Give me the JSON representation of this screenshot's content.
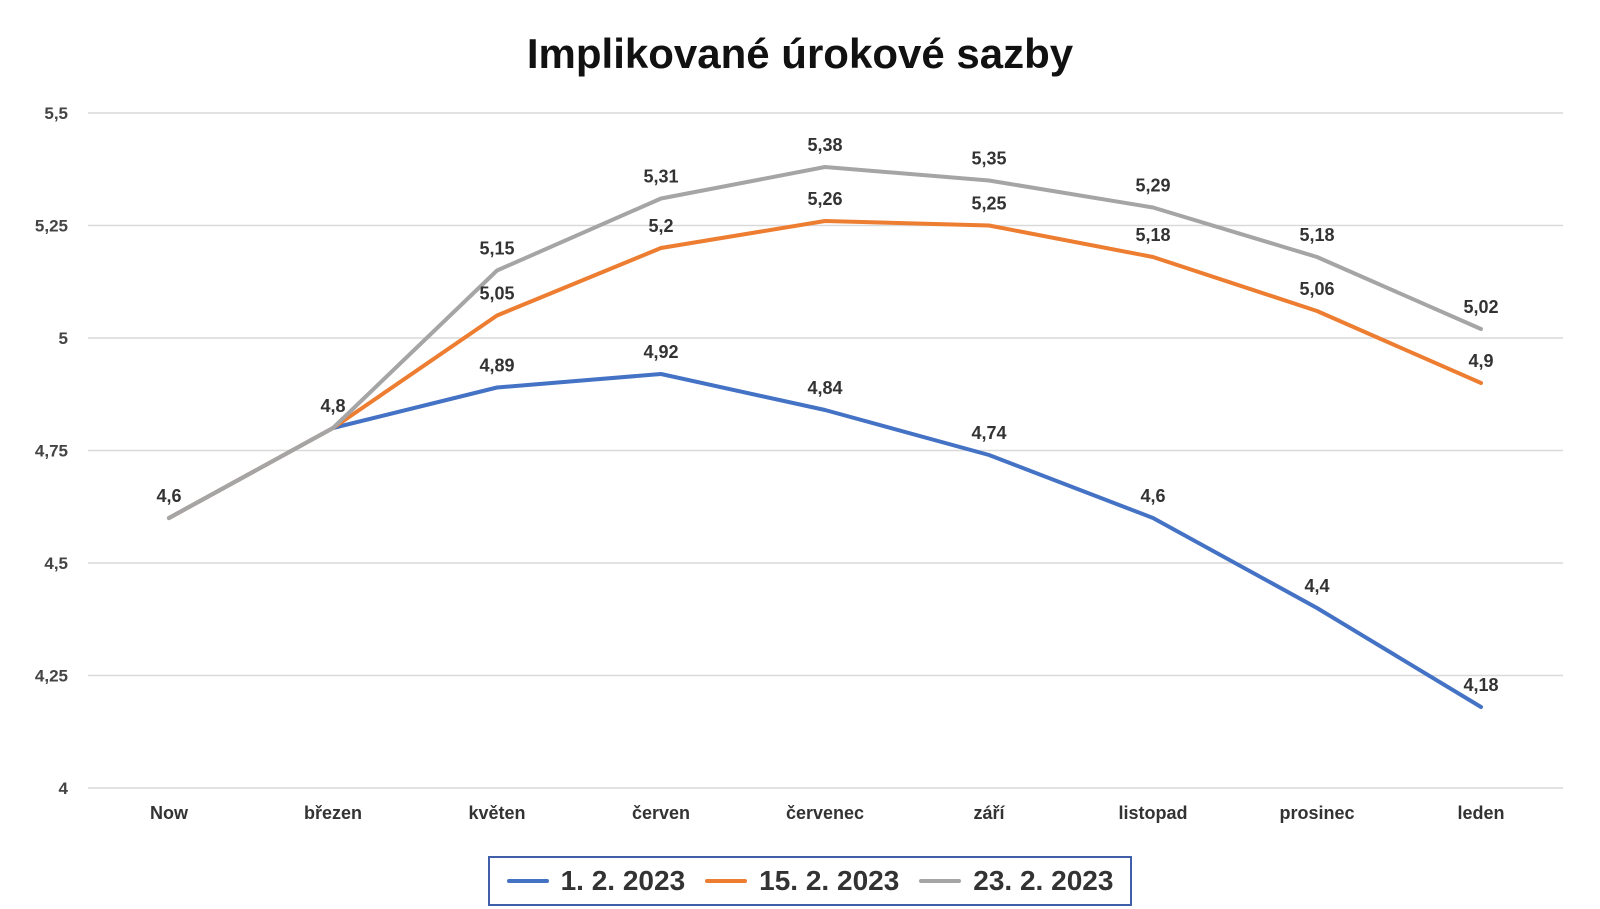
{
  "chart_data": {
    "type": "line",
    "title": "Implikované úrokové sazby",
    "categories": [
      "Now",
      "březen",
      "květen",
      "červen",
      "červenec",
      "září",
      "listopad",
      "prosinec",
      "leden"
    ],
    "ylim": [
      4,
      5.5
    ],
    "yticks": [
      4,
      4.25,
      4.5,
      4.75,
      5,
      5.25,
      5.5
    ],
    "ytick_labels": [
      "4",
      "4,25",
      "4,5",
      "4,75",
      "5",
      "5,25",
      "5,5"
    ],
    "grid": true,
    "legend_position": "bottom",
    "series": [
      {
        "name": "1. 2. 2023",
        "color": "#4472c4",
        "values": [
          4.6,
          4.8,
          4.89,
          4.92,
          4.84,
          4.74,
          4.6,
          4.4,
          4.18
        ],
        "labels": [
          "4,6",
          "4,8",
          "4,89",
          "4,92",
          "4,84",
          "4,74",
          "4,6",
          "4,4",
          "4,18"
        ]
      },
      {
        "name": "15. 2. 2023",
        "color": "#ed7d31",
        "values": [
          4.6,
          4.8,
          5.05,
          5.2,
          5.26,
          5.25,
          5.18,
          5.06,
          4.9
        ],
        "labels": [
          "",
          "",
          "5,05",
          "5,2",
          "5,26",
          "5,25",
          "5,18",
          "5,06",
          "4,9"
        ]
      },
      {
        "name": "23. 2. 2023",
        "color": "#a5a5a5",
        "values": [
          4.6,
          4.8,
          5.15,
          5.31,
          5.38,
          5.35,
          5.29,
          5.18,
          5.02
        ],
        "labels": [
          "",
          "",
          "5,15",
          "5,31",
          "5,38",
          "5,35",
          "5,29",
          "5,18",
          "5,02"
        ]
      }
    ]
  }
}
